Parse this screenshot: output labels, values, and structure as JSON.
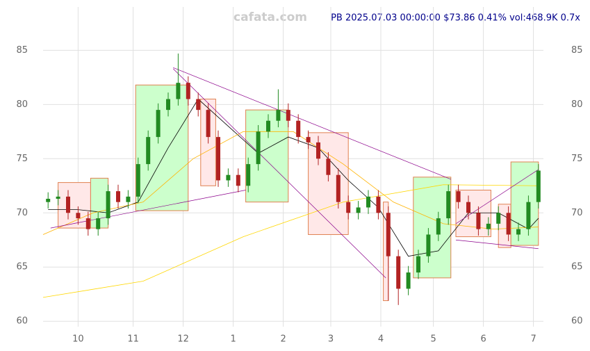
{
  "chart_data": {
    "type": "candlestick",
    "title": "PB 2025.07.03 00:00:00 $73.86 0.41% vol:468.9K 0.7x",
    "watermark": "cafata.com",
    "xlim": [
      0,
      200
    ],
    "ylim": [
      59.5,
      89
    ],
    "xticks": [
      {
        "value": 14,
        "label": "10"
      },
      {
        "value": 36,
        "label": "11"
      },
      {
        "value": 56,
        "label": "12"
      },
      {
        "value": 76,
        "label": "1"
      },
      {
        "value": 96,
        "label": "2"
      },
      {
        "value": 115,
        "label": "3"
      },
      {
        "value": 135,
        "label": "4"
      },
      {
        "value": 156,
        "label": "5"
      },
      {
        "value": 176,
        "label": "6"
      },
      {
        "value": 196,
        "label": "7"
      }
    ],
    "yticks": [
      60,
      65,
      70,
      75,
      80,
      85
    ],
    "grid": true,
    "up_color": "#228b22",
    "down_color": "#b22222",
    "x": [
      2,
      6,
      10,
      14,
      18,
      22,
      26,
      30,
      34,
      38,
      42,
      46,
      50,
      54,
      58,
      62,
      66,
      70,
      74,
      78,
      82,
      86,
      90,
      94,
      98,
      102,
      106,
      110,
      114,
      118,
      122,
      126,
      130,
      134,
      138,
      142,
      146,
      150,
      154,
      158,
      162,
      166,
      170,
      174,
      178,
      182,
      186,
      190,
      194,
      198
    ],
    "open": [
      71,
      71.3,
      71.5,
      70,
      69.5,
      68.5,
      69.5,
      72,
      71,
      71.5,
      74.5,
      77,
      79.5,
      80.5,
      82,
      80.5,
      79.5,
      77,
      73,
      73.5,
      72.5,
      74.5,
      77.5,
      78.5,
      79.5,
      78.5,
      77,
      76.5,
      75,
      73.5,
      71,
      70,
      70.5,
      71.5,
      70,
      66,
      63,
      64.5,
      66,
      68,
      69.5,
      72,
      71,
      70,
      68.5,
      69,
      70,
      68,
      68.5,
      71
    ],
    "high": [
      71.9,
      72.1,
      72.1,
      70.6,
      70.1,
      70.1,
      72.6,
      72.6,
      72.1,
      75.1,
      77.6,
      80.1,
      81.1,
      84.7,
      82.6,
      81.1,
      80.1,
      77.6,
      74.1,
      74.1,
      75.1,
      78.1,
      79.1,
      81.4,
      80.1,
      79.1,
      77.6,
      77.1,
      75.6,
      74.1,
      71.6,
      71.1,
      72.1,
      72.1,
      70.6,
      66.6,
      65.1,
      66.6,
      68.6,
      70.1,
      72.6,
      72.6,
      71.6,
      70.6,
      69.6,
      70.6,
      70.6,
      69.1,
      71.6,
      74.5
    ],
    "low": [
      70.4,
      70.7,
      69.4,
      68.9,
      67.9,
      67.9,
      68.9,
      70.4,
      70.4,
      70.9,
      73.9,
      76.4,
      78.9,
      79.9,
      79.9,
      78.9,
      76.4,
      72.4,
      72.4,
      71.9,
      71.9,
      73.9,
      76.9,
      77.9,
      77.9,
      76.4,
      75.9,
      74.4,
      72.9,
      70.4,
      69.4,
      69.4,
      69.9,
      69.4,
      61.9,
      61.5,
      62.4,
      63.9,
      65.4,
      67.4,
      68.9,
      70.4,
      69.4,
      67.9,
      67.9,
      68.4,
      67.4,
      67.4,
      67.9,
      70.4
    ],
    "close": [
      71.3,
      71.5,
      70,
      69.5,
      68.5,
      69.5,
      72,
      71,
      71.5,
      74.5,
      77,
      79.5,
      80.5,
      82,
      80.5,
      79.5,
      77,
      73,
      73.5,
      72.5,
      74.5,
      77.5,
      78.5,
      79.5,
      78.5,
      77,
      76.5,
      75,
      73.5,
      71,
      70,
      70.5,
      71.5,
      70,
      66,
      63,
      64.5,
      66,
      68,
      69.5,
      72,
      71,
      70,
      68.5,
      69,
      70,
      68,
      68.5,
      71,
      73.9
    ],
    "boxes": [
      {
        "x0": 6,
        "x1": 19,
        "low": 68.6,
        "high": 72.8,
        "color": "#ffe8e8"
      },
      {
        "x0": 19,
        "x1": 26,
        "low": 68.6,
        "high": 73.2,
        "color": "#ccffcc"
      },
      {
        "x0": 37,
        "x1": 58,
        "low": 70.2,
        "high": 81.8,
        "color": "#ccffcc"
      },
      {
        "x0": 63,
        "x1": 69,
        "low": 72.5,
        "high": 80.5,
        "color": "#ffe8e8"
      },
      {
        "x0": 81,
        "x1": 98,
        "low": 71,
        "high": 79.5,
        "color": "#ccffcc"
      },
      {
        "x0": 106,
        "x1": 122,
        "low": 68,
        "high": 77.4,
        "color": "#ffe8e8"
      },
      {
        "x0": 136,
        "x1": 138,
        "low": 61.9,
        "high": 71,
        "color": "#ffe8e8"
      },
      {
        "x0": 148,
        "x1": 163,
        "low": 64,
        "high": 73.3,
        "color": "#ccffcc"
      },
      {
        "x0": 165,
        "x1": 179,
        "low": 67.8,
        "high": 72.1,
        "color": "#ffe8e8"
      },
      {
        "x0": 182,
        "x1": 187,
        "low": 66.8,
        "high": 70.8,
        "color": "#ffe8e8"
      },
      {
        "x0": 187,
        "x1": 198,
        "low": 67,
        "high": 74.7,
        "color": "#ccffcc"
      }
    ],
    "lines": [
      {
        "color": "#000000",
        "x": [
          2,
          14,
          26,
          38,
          50,
          62,
          74,
          86,
          98,
          110,
          122,
          134,
          146,
          158,
          170,
          182,
          194,
          198
        ],
        "values": [
          70.3,
          70.3,
          70,
          71,
          76,
          80.5,
          78,
          75.5,
          77,
          76,
          73,
          70.5,
          66,
          66.5,
          70,
          70,
          68.5,
          69.5
        ]
      },
      {
        "color": "#ffb300",
        "x": [
          0,
          20,
          40,
          60,
          80,
          100,
          120,
          140,
          160,
          180,
          198
        ],
        "values": [
          68,
          70,
          71,
          75,
          77.5,
          77.5,
          74.5,
          71,
          69,
          68.5,
          68.7
        ]
      },
      {
        "color": "#ffd700",
        "x": [
          0,
          40,
          80,
          120,
          160,
          198
        ],
        "values": [
          62.2,
          63.7,
          67.8,
          71,
          72.6,
          72.5
        ]
      }
    ],
    "trendlines": [
      {
        "x": [
          3,
          81
        ],
        "values": [
          68.6,
          72.1
        ]
      },
      {
        "x": [
          52,
          163
        ],
        "values": [
          83.4,
          73.1
        ]
      },
      {
        "x": [
          52,
          137
        ],
        "values": [
          83.3,
          64
        ]
      },
      {
        "x": [
          165,
          198
        ],
        "values": [
          69,
          74
        ]
      },
      {
        "x": [
          165,
          198
        ],
        "values": [
          67.5,
          66.7
        ]
      }
    ],
    "trend_color": "#8b008b"
  }
}
